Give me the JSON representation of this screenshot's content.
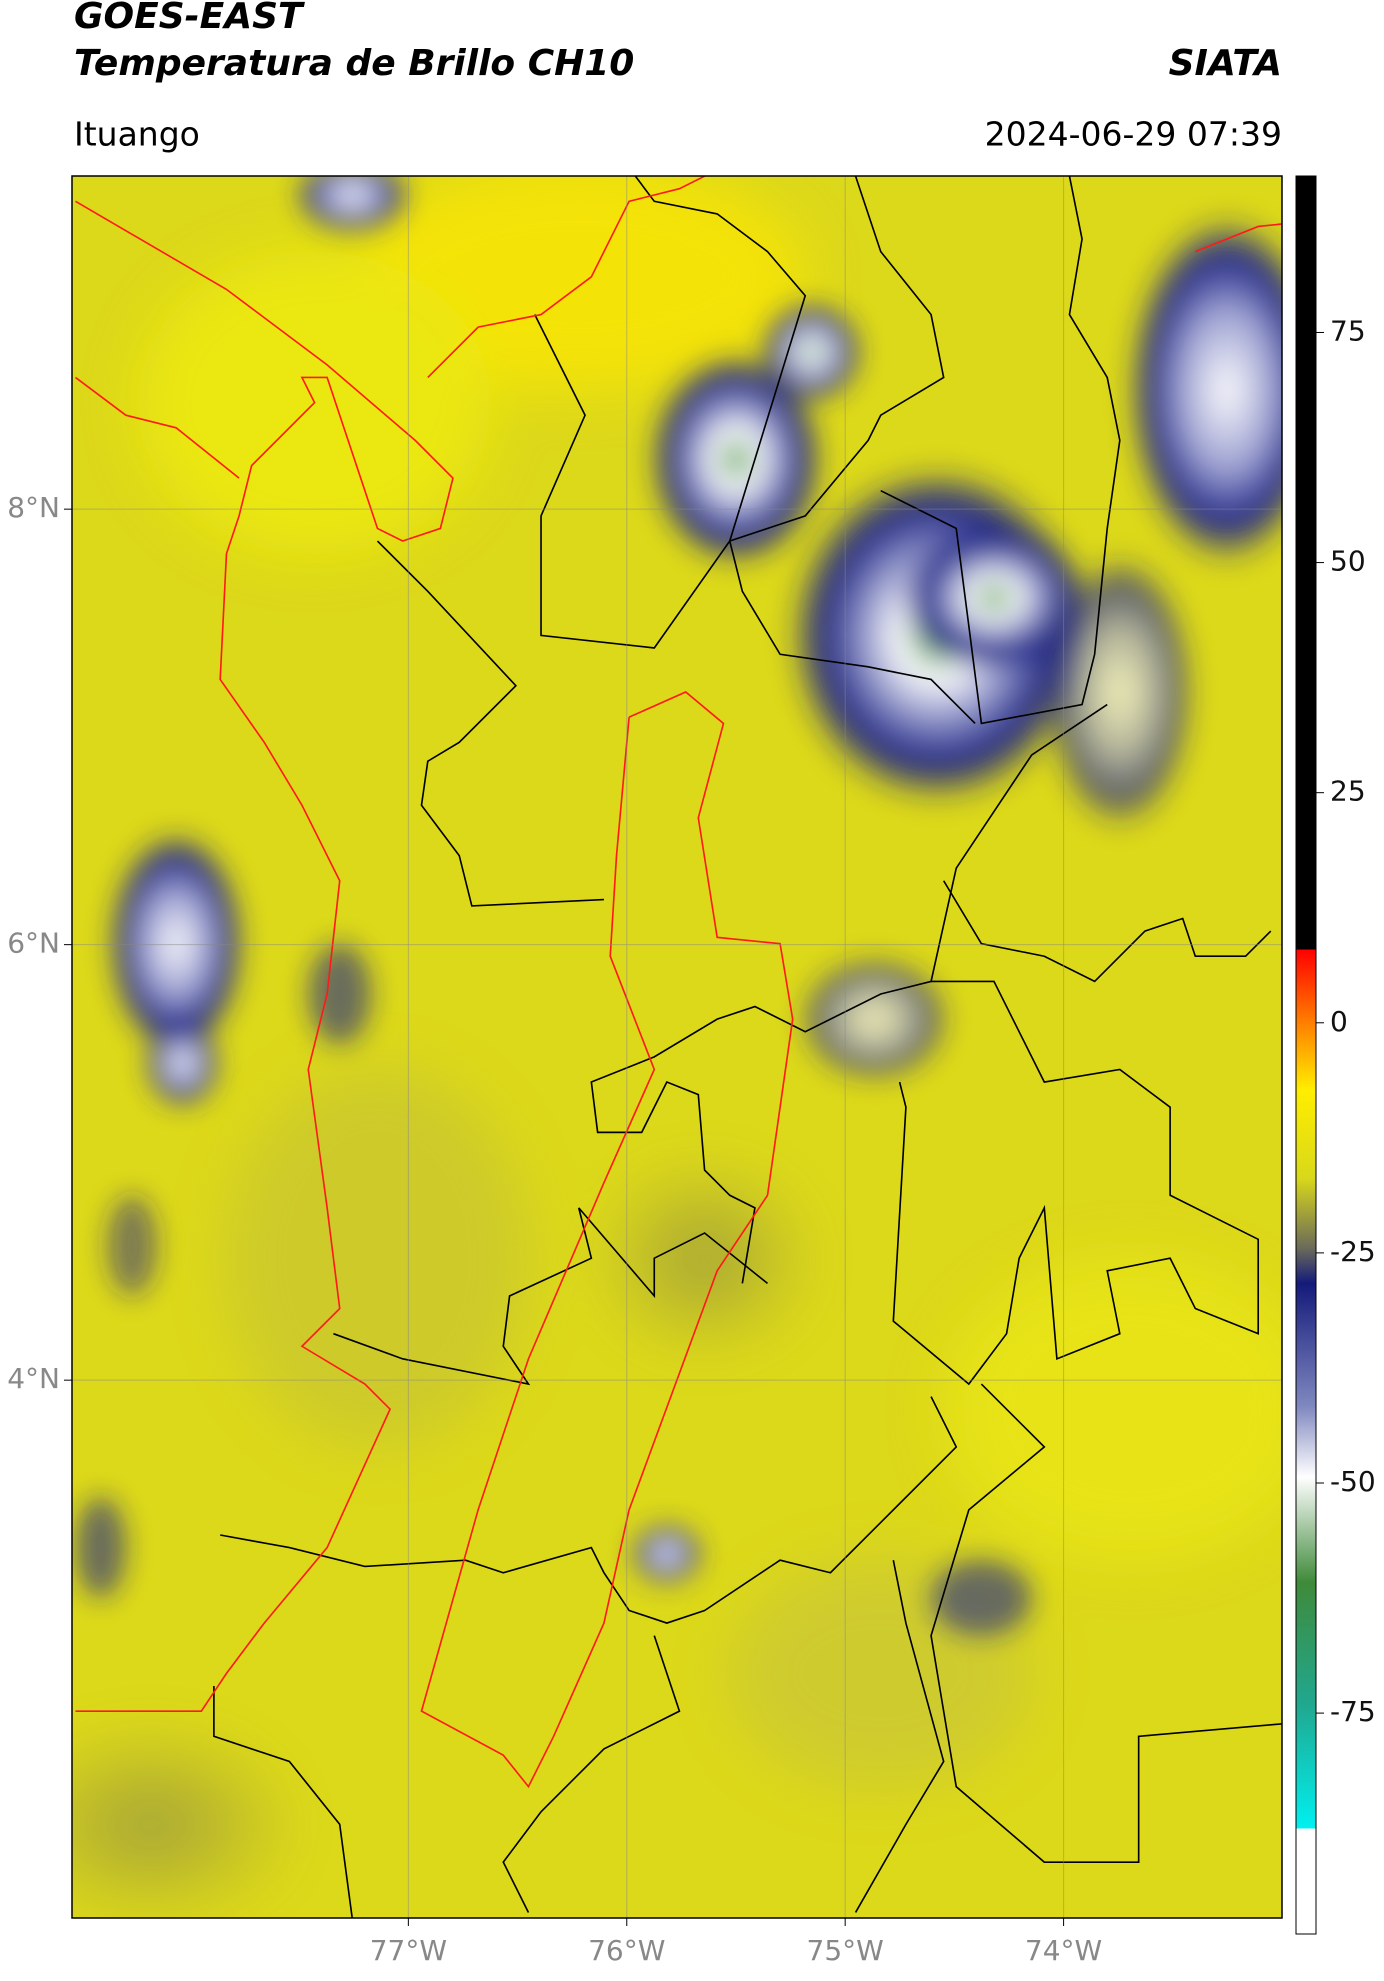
{
  "header": {
    "title": "GOES-EAST",
    "subtitle": "Temperatura de Brillo CH10",
    "source": "SIATA",
    "location": "Ituango",
    "timestamp": "2024-06-29 07:39"
  },
  "map": {
    "lonlim": [
      -78.54,
      -73.0
    ],
    "latlim": [
      1.53,
      9.53
    ],
    "lonticks": [
      {
        "value": -77,
        "label": "77°W"
      },
      {
        "value": -76,
        "label": "76°W"
      },
      {
        "value": -75,
        "label": "75°W"
      },
      {
        "value": -74,
        "label": "74°W"
      }
    ],
    "latticks": [
      {
        "value": 8,
        "label": "8°N"
      },
      {
        "value": 6,
        "label": "6°N"
      },
      {
        "value": 4,
        "label": "4°N"
      }
    ],
    "grid": true
  },
  "colorbar": {
    "lim": [
      -99,
      92
    ],
    "ticks": [
      75,
      50,
      25,
      0,
      -25,
      -50,
      -75
    ]
  }
}
